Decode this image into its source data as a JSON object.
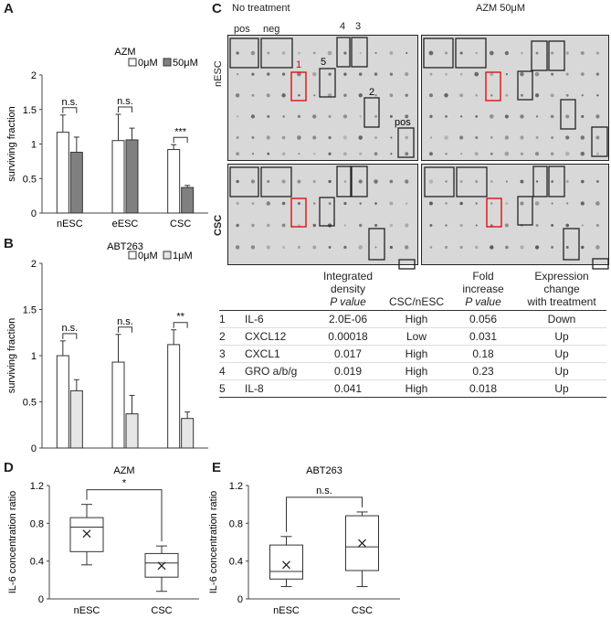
{
  "panels": {
    "A": {
      "letter": "A",
      "title": "AZM",
      "ylabel": "surviving fraction",
      "legend": [
        "0μM",
        "50μM"
      ]
    },
    "B": {
      "letter": "B",
      "title": "ABT263",
      "ylabel": "surviving fraction",
      "legend": [
        "0μM",
        "1μM"
      ]
    },
    "C": {
      "letter": "C",
      "col_no_treatment": "No treatment",
      "col_azm": "AZM 50μM",
      "row_nesc": "nESC",
      "row_csc": "CSC",
      "spot_labels": {
        "pos": "pos",
        "neg": "neg",
        "s1": "1",
        "s2": "2",
        "s3": "3",
        "s4": "4",
        "s5": "5",
        "pos_br": "pos"
      }
    },
    "D": {
      "letter": "D",
      "title": "AZM",
      "ylabel": "IL-6 concentration ratio",
      "sig": "*"
    },
    "E": {
      "letter": "E",
      "title": "ABT263",
      "ylabel": "IL-6 concentration ratio",
      "sig": "n.s."
    }
  },
  "table": {
    "headers": [
      "",
      "",
      "Integrated density P value",
      "CSC/nESC",
      "Fold increase P value",
      "Expression change with treatment"
    ],
    "header_lines": {
      "h1": "Integrated",
      "h2": "density",
      "h3": "P value",
      "h4": "CSC/nESC",
      "h5": "Fold",
      "h6": "increase",
      "h7": "P value",
      "h8": "Expression",
      "h9": "change",
      "h10": "with treatment"
    },
    "rows": [
      [
        "1",
        "IL-6",
        "2.0E-06",
        "High",
        "0.056",
        "Down"
      ],
      [
        "2",
        "CXCL12",
        "0.00018",
        "Low",
        "0.031",
        "Up"
      ],
      [
        "3",
        "CXCL1",
        "0.017",
        "High",
        "0.18",
        "Up"
      ],
      [
        "4",
        "GRO a/b/g",
        "0.019",
        "High",
        "0.23",
        "Up"
      ],
      [
        "5",
        "IL-8",
        "0.041",
        "High",
        "0.018",
        "Up"
      ]
    ]
  },
  "chart_data": [
    {
      "type": "bar",
      "panel": "A",
      "title": "AZM",
      "ylabel": "surviving fraction",
      "xlabel": "",
      "categories": [
        "nESC",
        "eESC",
        "CSC"
      ],
      "ylim": [
        0,
        2
      ],
      "yticks": [
        0,
        0.5,
        1,
        1.5,
        2
      ],
      "ytick_labels": [
        "0",
        "0.5",
        "1",
        "1.5",
        "2"
      ],
      "series": [
        {
          "name": "0μM",
          "color": "#ffffff",
          "values": [
            1.17,
            1.05,
            0.92
          ],
          "errors": [
            0.25,
            0.38,
            0.07
          ]
        },
        {
          "name": "50μM",
          "color": "#808080",
          "values": [
            0.88,
            1.06,
            0.37
          ],
          "errors": [
            0.22,
            0.17,
            0.03
          ]
        }
      ],
      "significance": [
        "n.s.",
        "n.s.",
        "***"
      ],
      "legend": "top-right"
    },
    {
      "type": "bar",
      "panel": "B",
      "title": "ABT263",
      "ylabel": "surviving fraction",
      "xlabel": "",
      "categories": [
        "nESC",
        "eESC",
        "CSC"
      ],
      "ylim": [
        0,
        2
      ],
      "yticks": [
        0,
        0.5,
        1,
        1.5,
        2
      ],
      "ytick_labels": [
        "0",
        "0.5",
        "1",
        "1.5",
        "2"
      ],
      "series": [
        {
          "name": "0μM",
          "color": "#ffffff",
          "values": [
            1.0,
            0.93,
            1.12
          ],
          "errors": [
            0.16,
            0.3,
            0.16
          ]
        },
        {
          "name": "1μM",
          "color": "#e6e6e6",
          "values": [
            0.62,
            0.37,
            0.32
          ],
          "errors": [
            0.12,
            0.2,
            0.07
          ]
        }
      ],
      "significance": [
        "n.s.",
        "n.s.",
        "**"
      ],
      "legend": "top-right"
    },
    {
      "type": "box",
      "panel": "D",
      "title": "AZM",
      "ylabel": "IL-6 concentration ratio",
      "categories": [
        "nESC",
        "CSC"
      ],
      "ylim": [
        0,
        1.2
      ],
      "yticks": [
        0,
        0.4,
        0.8,
        1.2
      ],
      "ytick_labels": [
        "0",
        "0.4",
        "0.8",
        "1.2"
      ],
      "boxes": [
        {
          "min": 0.36,
          "q1": 0.5,
          "median": 0.76,
          "q3": 0.86,
          "max": 1.0,
          "mean": 0.69
        },
        {
          "min": 0.08,
          "q1": 0.23,
          "median": 0.38,
          "q3": 0.48,
          "max": 0.56,
          "mean": 0.35
        }
      ],
      "significance": "*"
    },
    {
      "type": "box",
      "panel": "E",
      "title": "ABT263",
      "ylabel": "IL-6 concentration ratio",
      "categories": [
        "nESC",
        "CSC"
      ],
      "ylim": [
        0,
        1.2
      ],
      "yticks": [
        0,
        0.4,
        0.8,
        1.2
      ],
      "ytick_labels": [
        "0",
        "0.4",
        "0.8",
        "1.2"
      ],
      "boxes": [
        {
          "min": 0.13,
          "q1": 0.21,
          "median": 0.29,
          "q3": 0.57,
          "max": 0.66,
          "mean": 0.36
        },
        {
          "min": 0.13,
          "q1": 0.3,
          "median": 0.55,
          "q3": 0.88,
          "max": 0.92,
          "mean": 0.59
        }
      ],
      "significance": "n.s."
    }
  ]
}
